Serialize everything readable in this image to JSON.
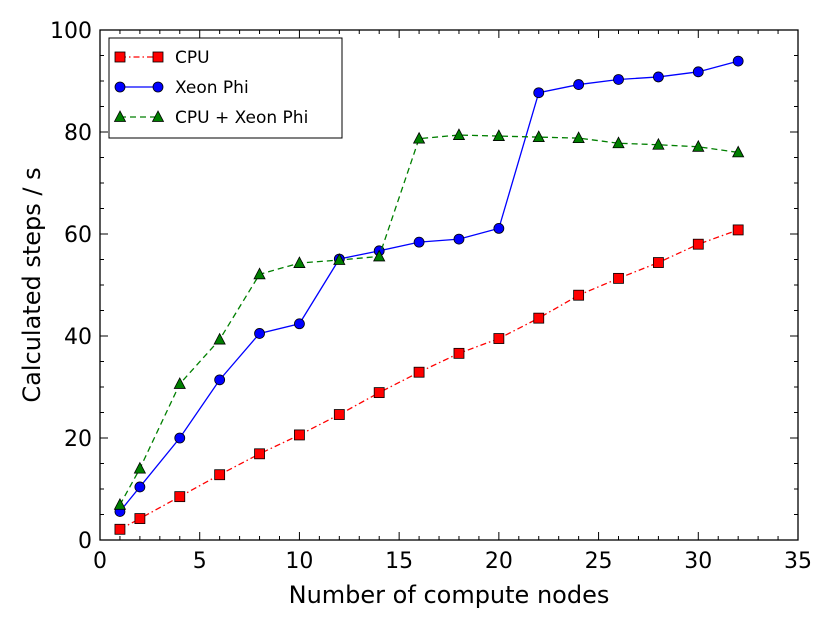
{
  "chart_data": {
    "type": "line",
    "title": "",
    "xlabel": "Number of compute nodes",
    "ylabel": "Calculated steps / s",
    "xlim": [
      0,
      35
    ],
    "ylim": [
      0,
      100
    ],
    "xticks": [
      0,
      5,
      10,
      15,
      20,
      25,
      30,
      35
    ],
    "yticks": [
      0,
      20,
      40,
      60,
      80,
      100
    ],
    "xtick_labels": [
      "0",
      "5",
      "10",
      "15",
      "20",
      "25",
      "30",
      "35"
    ],
    "ytick_labels": [
      "0",
      "20",
      "40",
      "60",
      "80",
      "100"
    ],
    "legend_position": "top-left",
    "grid": false,
    "series": [
      {
        "name": "CPU",
        "color": "#ff0000",
        "marker": "square",
        "linestyle": "dashdot",
        "x": [
          1,
          2,
          4,
          6,
          8,
          10,
          12,
          14,
          16,
          18,
          20,
          22,
          24,
          26,
          28,
          30,
          32
        ],
        "y": [
          2.1,
          4.2,
          8.5,
          12.8,
          16.9,
          20.6,
          24.6,
          28.9,
          32.9,
          36.6,
          39.5,
          43.5,
          48.0,
          51.3,
          54.4,
          58.0,
          60.8
        ]
      },
      {
        "name": "Xeon Phi",
        "color": "#0000ff",
        "marker": "circle",
        "linestyle": "solid",
        "x": [
          1,
          2,
          4,
          6,
          8,
          10,
          12,
          14,
          16,
          18,
          20,
          22,
          24,
          26,
          28,
          30,
          32
        ],
        "y": [
          5.6,
          10.4,
          20.0,
          31.4,
          40.5,
          42.4,
          55.1,
          56.7,
          58.4,
          59.0,
          61.1,
          87.7,
          89.3,
          90.3,
          90.8,
          91.8,
          93.9
        ]
      },
      {
        "name": "CPU + Xeon Phi",
        "color": "#007f00",
        "marker": "triangle",
        "linestyle": "dashed",
        "x": [
          1,
          2,
          4,
          6,
          8,
          10,
          12,
          14,
          16,
          18,
          20,
          22,
          24,
          26,
          28,
          30,
          32
        ],
        "y": [
          6.9,
          14.0,
          30.6,
          39.3,
          52.1,
          54.3,
          54.9,
          55.6,
          78.7,
          79.4,
          79.2,
          79.0,
          78.8,
          77.8,
          77.5,
          77.1,
          76.0
        ]
      }
    ]
  }
}
